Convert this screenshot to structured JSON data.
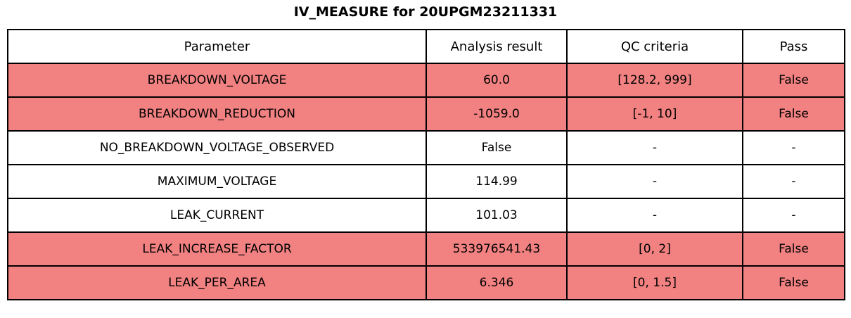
{
  "title": "IV_MEASURE for 20UPGM23211331",
  "table": {
    "headers": [
      "Parameter",
      "Analysis result",
      "QC criteria",
      "Pass"
    ],
    "rows": [
      {
        "parameter": "BREAKDOWN_VOLTAGE",
        "analysis_result": "60.0",
        "qc_criteria": "[128.2, 999]",
        "pass": "False",
        "highlighted": true
      },
      {
        "parameter": "BREAKDOWN_REDUCTION",
        "analysis_result": "-1059.0",
        "qc_criteria": "[-1, 10]",
        "pass": "False",
        "highlighted": true
      },
      {
        "parameter": "NO_BREAKDOWN_VOLTAGE_OBSERVED",
        "analysis_result": "False",
        "qc_criteria": "-",
        "pass": "-",
        "highlighted": false
      },
      {
        "parameter": "MAXIMUM_VOLTAGE",
        "analysis_result": "114.99",
        "qc_criteria": "-",
        "pass": "-",
        "highlighted": false
      },
      {
        "parameter": "LEAK_CURRENT",
        "analysis_result": "101.03",
        "qc_criteria": "-",
        "pass": "-",
        "highlighted": false
      },
      {
        "parameter": "LEAK_INCREASE_FACTOR",
        "analysis_result": "533976541.43",
        "qc_criteria": "[0, 2]",
        "pass": "False",
        "highlighted": true
      },
      {
        "parameter": "LEAK_PER_AREA",
        "analysis_result": "6.346",
        "qc_criteria": "[0, 1.5]",
        "pass": "False",
        "highlighted": true
      }
    ],
    "colors": {
      "fail_row_bg": "#f28181",
      "normal_row_bg": "#ffffff",
      "border": "#000000",
      "text": "#000000"
    }
  },
  "chart_data": {
    "type": "table",
    "title": "IV_MEASURE for 20UPGM23211331",
    "columns": [
      "Parameter",
      "Analysis result",
      "QC criteria",
      "Pass"
    ],
    "rows": [
      [
        "BREAKDOWN_VOLTAGE",
        "60.0",
        "[128.2, 999]",
        "False"
      ],
      [
        "BREAKDOWN_REDUCTION",
        "-1059.0",
        "[-1, 10]",
        "False"
      ],
      [
        "NO_BREAKDOWN_VOLTAGE_OBSERVED",
        "False",
        "-",
        "-"
      ],
      [
        "MAXIMUM_VOLTAGE",
        "114.99",
        "-",
        "-"
      ],
      [
        "LEAK_CURRENT",
        "101.03",
        "-",
        "-"
      ],
      [
        "LEAK_INCREASE_FACTOR",
        "533976541.43",
        "[0, 2]",
        "False"
      ],
      [
        "LEAK_PER_AREA",
        "6.346",
        "[0, 1.5]",
        "False"
      ]
    ],
    "highlighted_row_indices": [
      0,
      1,
      5,
      6
    ],
    "highlight_color": "#f28181",
    "layout": {
      "title_position": "top-center",
      "cell_text_align": "center",
      "grid": "full-borders"
    }
  }
}
